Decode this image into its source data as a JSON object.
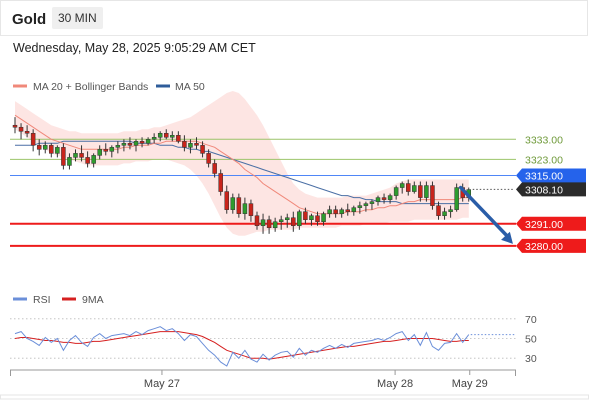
{
  "header": {
    "symbol": "Gold",
    "timeframe": "30 MIN"
  },
  "datetime": "Wednesday, May 28, 2025 9:05:29 AM CET",
  "colors": {
    "bull": "#2e9b2e",
    "bear": "#c8241b",
    "ma20": "#f0887a",
    "band_fill": "#fde0de",
    "ma50": "#4a6fa5",
    "level_red": "#ee1b1b",
    "level_blue": "#4f86f7",
    "level_green": "#9bc46a",
    "label_blue": "#2563eb",
    "label_dark": "#2b2b2b",
    "arrow": "#2a5da8",
    "rsi": "#6b8fd9",
    "rsi_ma": "#d62020"
  },
  "chart_data": [
    {
      "type": "candlestick",
      "legend": [
        {
          "name": "MA 20 + Bollinger Bands",
          "color": "#f0887a"
        },
        {
          "name": "MA 50",
          "color": "#2e5c9a"
        }
      ],
      "ylim": [
        3268,
        3360
      ],
      "candles": [
        [
          3340,
          3344,
          3336,
          3339
        ],
        [
          3339,
          3341,
          3333,
          3337
        ],
        [
          3337,
          3340,
          3334,
          3336
        ],
        [
          3336,
          3338,
          3327,
          3330
        ],
        [
          3330,
          3333,
          3325,
          3328
        ],
        [
          3328,
          3332,
          3326,
          3330
        ],
        [
          3330,
          3331,
          3324,
          3326
        ],
        [
          3326,
          3330,
          3324,
          3329
        ],
        [
          3329,
          3331,
          3318,
          3320
        ],
        [
          3320,
          3326,
          3318,
          3324
        ],
        [
          3324,
          3328,
          3322,
          3326
        ],
        [
          3326,
          3330,
          3322,
          3324
        ],
        [
          3324,
          3327,
          3319,
          3321
        ],
        [
          3321,
          3326,
          3319,
          3325
        ],
        [
          3325,
          3330,
          3323,
          3328
        ],
        [
          3328,
          3331,
          3325,
          3327
        ],
        [
          3327,
          3330,
          3324,
          3329
        ],
        [
          3329,
          3332,
          3326,
          3330
        ],
        [
          3330,
          3333,
          3327,
          3331
        ],
        [
          3331,
          3334,
          3328,
          3330
        ],
        [
          3330,
          3333,
          3327,
          3332
        ],
        [
          3332,
          3334,
          3329,
          3331
        ],
        [
          3331,
          3334,
          3330,
          3333
        ],
        [
          3333,
          3336,
          3331,
          3334
        ],
        [
          3334,
          3337,
          3332,
          3336
        ],
        [
          3336,
          3338,
          3333,
          3334
        ],
        [
          3334,
          3337,
          3332,
          3335
        ],
        [
          3335,
          3337,
          3331,
          3332
        ],
        [
          3332,
          3335,
          3327,
          3329
        ],
        [
          3329,
          3333,
          3326,
          3331
        ],
        [
          3331,
          3334,
          3328,
          3330
        ],
        [
          3330,
          3332,
          3324,
          3326
        ],
        [
          3326,
          3328,
          3319,
          3321
        ],
        [
          3321,
          3323,
          3314,
          3316
        ],
        [
          3316,
          3318,
          3305,
          3307
        ],
        [
          3307,
          3310,
          3296,
          3298
        ],
        [
          3298,
          3306,
          3296,
          3304
        ],
        [
          3304,
          3306,
          3294,
          3296
        ],
        [
          3296,
          3304,
          3293,
          3301
        ],
        [
          3301,
          3303,
          3292,
          3295
        ],
        [
          3295,
          3297,
          3288,
          3290
        ],
        [
          3290,
          3296,
          3286,
          3293
        ],
        [
          3293,
          3295,
          3286,
          3289
        ],
        [
          3289,
          3294,
          3287,
          3292
        ],
        [
          3292,
          3295,
          3288,
          3293
        ],
        [
          3293,
          3296,
          3289,
          3294
        ],
        [
          3294,
          3297,
          3287,
          3290
        ],
        [
          3290,
          3298,
          3288,
          3297
        ],
        [
          3297,
          3299,
          3291,
          3293
        ],
        [
          3293,
          3296,
          3290,
          3295
        ],
        [
          3295,
          3297,
          3290,
          3292
        ],
        [
          3292,
          3297,
          3290,
          3296
        ],
        [
          3296,
          3300,
          3294,
          3298
        ],
        [
          3298,
          3300,
          3294,
          3296
        ],
        [
          3296,
          3299,
          3294,
          3298
        ],
        [
          3298,
          3301,
          3295,
          3297
        ],
        [
          3297,
          3300,
          3295,
          3299
        ],
        [
          3299,
          3302,
          3296,
          3300
        ],
        [
          3300,
          3302,
          3297,
          3301
        ],
        [
          3301,
          3303,
          3298,
          3302
        ],
        [
          3302,
          3305,
          3300,
          3304
        ],
        [
          3304,
          3306,
          3301,
          3303
        ],
        [
          3303,
          3306,
          3301,
          3305
        ],
        [
          3305,
          3310,
          3303,
          3309
        ],
        [
          3309,
          3312,
          3306,
          3311
        ],
        [
          3311,
          3313,
          3305,
          3307
        ],
        [
          3307,
          3312,
          3306,
          3310
        ],
        [
          3310,
          3312,
          3302,
          3304
        ],
        [
          3304,
          3312,
          3302,
          3310
        ],
        [
          3310,
          3312,
          3298,
          3300
        ],
        [
          3300,
          3302,
          3293,
          3295
        ],
        [
          3295,
          3299,
          3293,
          3297
        ],
        [
          3297,
          3300,
          3294,
          3298
        ],
        [
          3298,
          3311,
          3297,
          3309
        ],
        [
          3309,
          3311,
          3302,
          3304
        ],
        [
          3304,
          3309,
          3302,
          3308
        ]
      ],
      "ma20": [
        3345,
        3343,
        3341,
        3339,
        3337,
        3335,
        3333,
        3332,
        3331,
        3330,
        3329,
        3328,
        3328,
        3328,
        3328,
        3328,
        3328,
        3328,
        3329,
        3329,
        3330,
        3330,
        3330,
        3331,
        3331,
        3332,
        3332,
        3332,
        3332,
        3332,
        3332,
        3331,
        3330,
        3329,
        3327,
        3325,
        3323,
        3321,
        3318,
        3316,
        3314,
        3311,
        3309,
        3307,
        3305,
        3303,
        3301,
        3299,
        3298,
        3297,
        3296,
        3296,
        3296,
        3296,
        3296,
        3297,
        3297,
        3297,
        3298,
        3298,
        3299,
        3299,
        3300,
        3300,
        3301,
        3302,
        3302,
        3303,
        3303,
        3303,
        3303,
        3303,
        3303,
        3303,
        3304,
        3304
      ],
      "upper": [
        3352,
        3350,
        3348,
        3346,
        3344,
        3342,
        3340,
        3339,
        3338,
        3337,
        3337,
        3336,
        3336,
        3336,
        3336,
        3336,
        3336,
        3336,
        3337,
        3337,
        3337,
        3338,
        3338,
        3339,
        3339,
        3340,
        3341,
        3342,
        3343,
        3344,
        3346,
        3348,
        3350,
        3352,
        3354,
        3356,
        3357,
        3356,
        3353,
        3349,
        3345,
        3340,
        3334,
        3328,
        3322,
        3316,
        3311,
        3308,
        3306,
        3305,
        3304,
        3304,
        3304,
        3304,
        3304,
        3305,
        3305,
        3305,
        3305,
        3306,
        3307,
        3308,
        3309,
        3311,
        3312,
        3313,
        3313,
        3313,
        3313,
        3313,
        3313,
        3313,
        3313,
        3313,
        3313,
        3313
      ],
      "lower": [
        3338,
        3336,
        3334,
        3332,
        3330,
        3328,
        3326,
        3325,
        3324,
        3323,
        3322,
        3321,
        3320,
        3320,
        3320,
        3320,
        3320,
        3320,
        3321,
        3321,
        3322,
        3322,
        3322,
        3323,
        3323,
        3323,
        3322,
        3321,
        3320,
        3318,
        3315,
        3311,
        3306,
        3300,
        3294,
        3289,
        3286,
        3285,
        3285,
        3286,
        3287,
        3287,
        3288,
        3288,
        3288,
        3288,
        3288,
        3289,
        3289,
        3289,
        3289,
        3289,
        3289,
        3289,
        3290,
        3290,
        3290,
        3290,
        3291,
        3291,
        3291,
        3291,
        3292,
        3292,
        3292,
        3292,
        3293,
        3293,
        3293,
        3293,
        3293,
        3293,
        3293,
        3293,
        3294,
        3294
      ],
      "ma50": [
        3330,
        3330,
        3330,
        3330,
        3331,
        3331,
        3331,
        3331,
        3332,
        3332,
        3332,
        3332,
        3332,
        3332,
        3332,
        3332,
        3332,
        3332,
        3332,
        3332,
        3331,
        3331,
        3331,
        3331,
        3330,
        3330,
        3330,
        3329,
        3329,
        3328,
        3328,
        3327,
        3327,
        3326,
        3325,
        3324,
        3323,
        3322,
        3321,
        3320,
        3319,
        3318,
        3317,
        3316,
        3315,
        3314,
        3313,
        3312,
        3311,
        3310,
        3309,
        3308,
        3307,
        3306,
        3305,
        3305,
        3304,
        3304,
        3303,
        3303,
        3302,
        3302,
        3302,
        3302,
        3301,
        3301,
        3301,
        3301,
        3301,
        3301,
        3301,
        3301,
        3301,
        3301,
        3301,
        3301
      ],
      "levels": [
        {
          "value": 3333.0,
          "label": "3333.00",
          "style": "green"
        },
        {
          "value": 3323.0,
          "label": "3323.00",
          "style": "green"
        },
        {
          "value": 3315.0,
          "label": "3315.00",
          "style": "blue"
        },
        {
          "value": 3308.1,
          "label": "3308.10",
          "style": "dark"
        },
        {
          "value": 3291.0,
          "label": "3291.00",
          "style": "red"
        },
        {
          "value": 3280.0,
          "label": "3280.00",
          "style": "red"
        }
      ],
      "forecast_arrow": {
        "from": [
          73,
          3309
        ],
        "to": [
          79,
          3281
        ]
      }
    },
    {
      "type": "line",
      "legend": [
        {
          "name": "RSI",
          "color": "#6b8fd9"
        },
        {
          "name": "9MA",
          "color": "#d62020"
        }
      ],
      "ylim": [
        20,
        80
      ],
      "yticks": [
        "70",
        "50",
        "30"
      ],
      "ytick_values": [
        70,
        50,
        30
      ],
      "rsi": [
        55,
        57,
        50,
        47,
        43,
        51,
        46,
        50,
        38,
        48,
        53,
        46,
        42,
        51,
        55,
        50,
        53,
        54,
        55,
        53,
        57,
        54,
        58,
        60,
        62,
        58,
        60,
        55,
        48,
        54,
        52,
        45,
        38,
        33,
        26,
        22,
        36,
        30,
        38,
        29,
        26,
        34,
        28,
        33,
        36,
        37,
        31,
        40,
        33,
        38,
        36,
        40,
        43,
        40,
        44,
        41,
        45,
        46,
        47,
        48,
        50,
        48,
        51,
        55,
        57,
        48,
        54,
        43,
        56,
        42,
        38,
        45,
        46,
        55,
        46,
        54
      ],
      "rsi_ma": [
        50,
        51,
        51,
        50,
        49,
        48,
        48,
        47,
        46,
        46,
        45,
        45,
        46,
        47,
        47,
        48,
        49,
        50,
        51,
        52,
        53,
        54,
        55,
        56,
        57,
        57,
        57,
        57,
        56,
        55,
        54,
        52,
        49,
        46,
        42,
        38,
        36,
        34,
        32,
        30,
        30,
        30,
        29,
        30,
        31,
        32,
        33,
        34,
        35,
        36,
        37,
        38,
        39,
        40,
        41,
        42,
        42,
        43,
        44,
        45,
        46,
        47,
        47,
        48,
        49,
        50,
        50,
        50,
        50,
        50,
        49,
        48,
        47,
        47,
        48,
        48
      ],
      "x_ticks": [
        {
          "label": "May 27",
          "index": 19
        },
        {
          "label": "May 28",
          "index": 62
        },
        {
          "label": "May 29",
          "index": 75
        }
      ]
    }
  ]
}
